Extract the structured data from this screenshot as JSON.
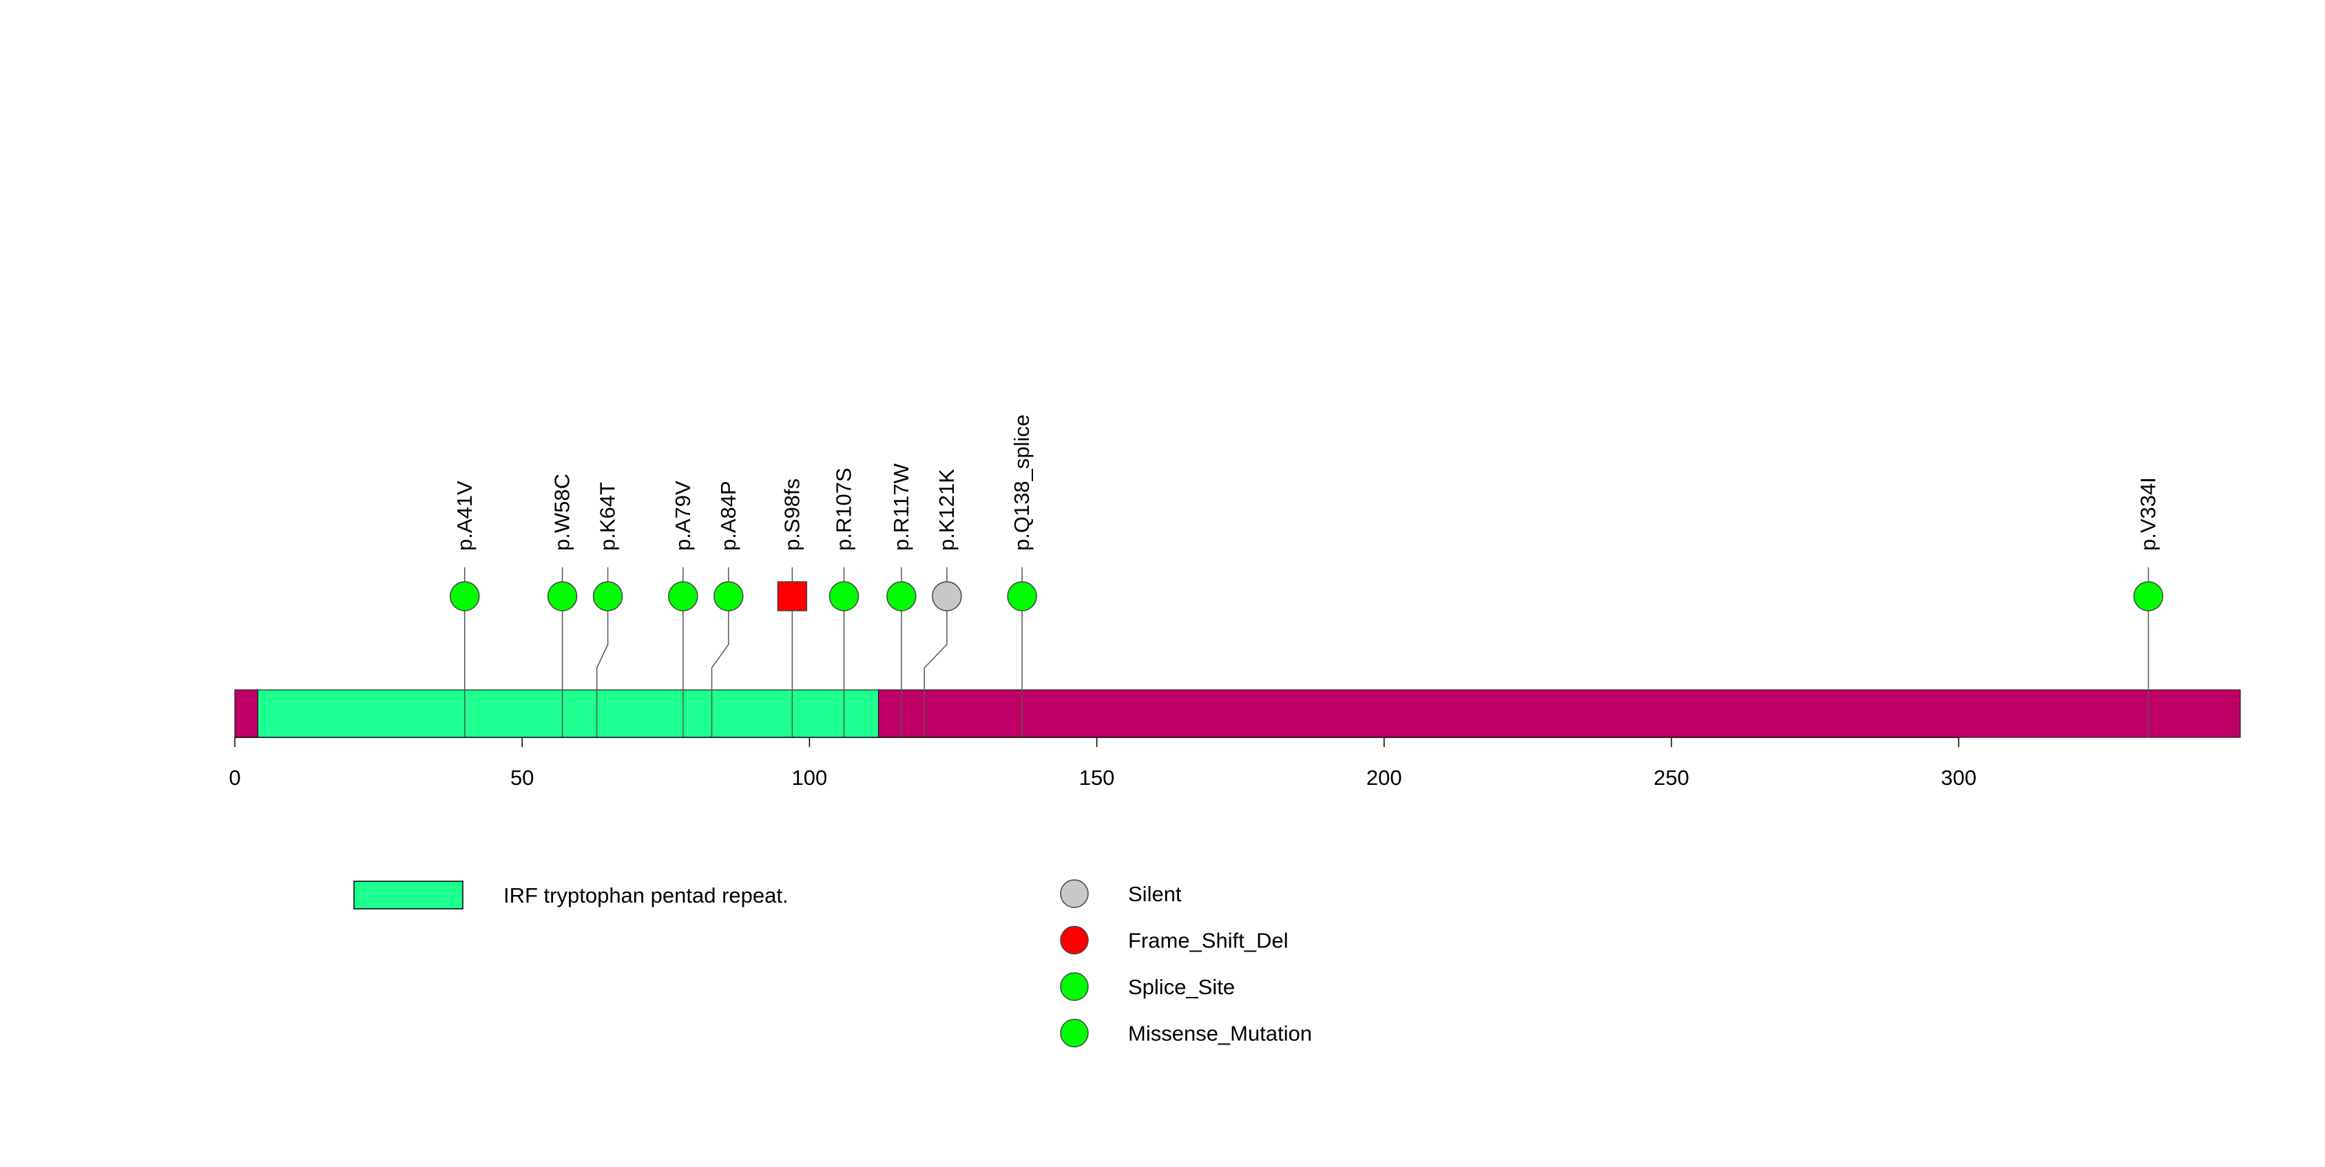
{
  "chart_data": {
    "type": "lollipop",
    "title": "",
    "xlabel": "",
    "ylabel": "",
    "protein_length": 349,
    "x_ticks": [
      0,
      50,
      100,
      150,
      200,
      250,
      300
    ],
    "x_tick_labels": [
      "0",
      "50",
      "100",
      "150",
      "200",
      "250",
      "300"
    ],
    "domains": [
      {
        "name": "IRF tryptophan pentad repeat.",
        "start": 4,
        "end": 112,
        "color": "#1DFF8F"
      }
    ],
    "backbone_color": "#BE0066",
    "mutations": [
      {
        "label": "p.A41V",
        "position": 40,
        "type": "Missense_Mutation"
      },
      {
        "label": "p.W58C",
        "position": 57,
        "type": "Missense_Mutation"
      },
      {
        "label": "p.K64T",
        "position": 63,
        "type": "Missense_Mutation"
      },
      {
        "label": "p.A79V",
        "position": 78,
        "type": "Missense_Mutation"
      },
      {
        "label": "p.A84P",
        "position": 83,
        "type": "Missense_Mutation"
      },
      {
        "label": "p.S98fs",
        "position": 97,
        "type": "Frame_Shift_Del"
      },
      {
        "label": "p.R107S",
        "position": 106,
        "type": "Missense_Mutation"
      },
      {
        "label": "p.R117W",
        "position": 116,
        "type": "Missense_Mutation"
      },
      {
        "label": "p.K121K",
        "position": 120,
        "type": "Silent"
      },
      {
        "label": "p.Q138_splice",
        "position": 137,
        "type": "Splice_Site"
      },
      {
        "label": "p.V334I",
        "position": 333,
        "type": "Missense_Mutation"
      }
    ],
    "mutation_types": [
      {
        "name": "Silent",
        "color": "#C8C8C8",
        "shape": "circle"
      },
      {
        "name": "Frame_Shift_Del",
        "color": "#FF0000",
        "shape": "square"
      },
      {
        "name": "Splice_Site",
        "color": "#00FF00",
        "shape": "circle"
      },
      {
        "name": "Missense_Mutation",
        "color": "#00FF00",
        "shape": "circle"
      }
    ],
    "legend": {
      "domains_position": "bottom-left",
      "types_position": "bottom-center",
      "entries": [
        "IRF tryptophan pentad repeat.",
        "Silent",
        "Frame_Shift_Del",
        "Splice_Site",
        "Missense_Mutation"
      ]
    }
  }
}
